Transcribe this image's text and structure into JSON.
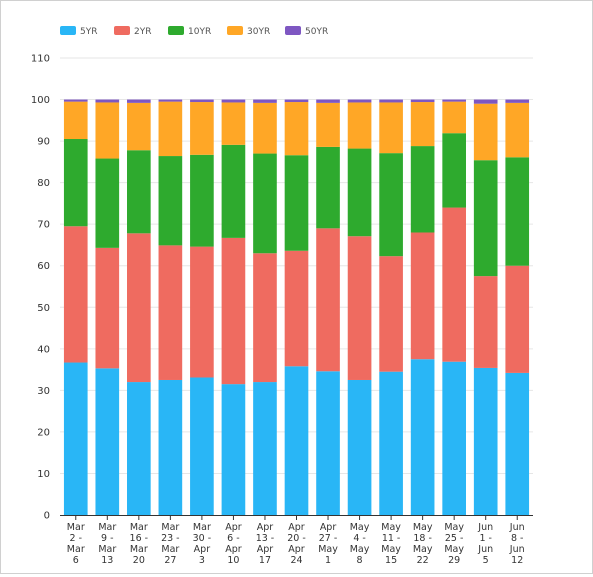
{
  "chart_data": {
    "type": "bar",
    "stacked": true,
    "categories": [
      [
        "Mar",
        "2 -",
        "Mar",
        "6"
      ],
      [
        "Mar",
        "9 -",
        "Mar",
        "13"
      ],
      [
        "Mar",
        "16 -",
        "Mar",
        "20"
      ],
      [
        "Mar",
        "23 -",
        "Mar",
        "27"
      ],
      [
        "Mar",
        "30 -",
        "Apr",
        "3"
      ],
      [
        "Apr",
        "6 -",
        "Apr",
        "10"
      ],
      [
        "Apr",
        "13 -",
        "Apr",
        "17"
      ],
      [
        "Apr",
        "20 -",
        "Apr",
        "24"
      ],
      [
        "Apr",
        "27 -",
        "May",
        "1"
      ],
      [
        "May",
        "4 -",
        "May",
        "8"
      ],
      [
        "May",
        "11 -",
        "May",
        "15"
      ],
      [
        "May",
        "18 -",
        "May",
        "22"
      ],
      [
        "May",
        "25 -",
        "May",
        "29"
      ],
      [
        "Jun",
        "1 -",
        "Jun",
        "5"
      ],
      [
        "Jun",
        "8 -",
        "Jun",
        "12"
      ]
    ],
    "series": [
      {
        "name": "5YR",
        "color": "#29b6f6",
        "values": [
          36.7,
          35.3,
          32.0,
          32.5,
          33.1,
          31.5,
          32.0,
          35.8,
          34.6,
          32.5,
          34.5,
          37.5,
          36.9,
          35.4,
          34.2
        ]
      },
      {
        "name": "2YR",
        "color": "#ef6b60",
        "values": [
          32.8,
          29.0,
          35.8,
          32.4,
          31.5,
          35.2,
          31.0,
          27.8,
          34.4,
          34.6,
          27.8,
          30.5,
          37.1,
          22.1,
          25.8
        ]
      },
      {
        "name": "10YR",
        "color": "#2eaa2e",
        "values": [
          21.0,
          21.5,
          20.0,
          21.5,
          22.1,
          22.4,
          24.0,
          23.0,
          19.6,
          21.1,
          24.8,
          20.8,
          17.9,
          27.9,
          26.1
        ]
      },
      {
        "name": "30YR",
        "color": "#ffa726",
        "values": [
          9.0,
          13.5,
          11.4,
          13.1,
          12.7,
          10.2,
          12.2,
          12.8,
          10.6,
          11.1,
          12.2,
          10.6,
          7.6,
          13.6,
          13.1
        ]
      },
      {
        "name": "50YR",
        "color": "#7e57c2",
        "values": [
          0.5,
          0.7,
          0.8,
          0.5,
          0.6,
          0.7,
          0.8,
          0.6,
          0.8,
          0.7,
          0.7,
          0.6,
          0.5,
          1.0,
          0.8
        ]
      }
    ],
    "ylim": [
      0,
      110
    ],
    "yticks": [
      0,
      10,
      20,
      30,
      40,
      50,
      60,
      70,
      80,
      90,
      100,
      110
    ],
    "grid": true,
    "legend_position": "top-left"
  }
}
